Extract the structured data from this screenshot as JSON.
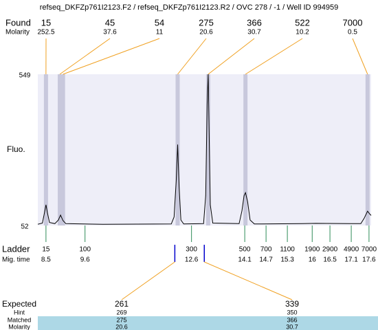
{
  "chart_data": {
    "type": "electropherogram",
    "title": "refseq_DKFZp761I2123.F2 / refseq_DKFZp761I2123.R2 / OVC 278 / -1 / Well ID 994959",
    "ylabel": "Fluo.",
    "ylim": [
      52,
      549
    ],
    "yticks": [
      52,
      549
    ],
    "xlim": [
      8.27,
      17.66
    ],
    "plot_background": "#eeeef8",
    "trace": {
      "color": "#000000",
      "x": [
        8.27,
        8.4,
        8.46,
        8.5,
        8.54,
        8.6,
        8.75,
        8.85,
        8.91,
        8.98,
        9.06,
        10.1,
        12.03,
        12.11,
        12.17,
        12.21,
        12.25,
        12.3,
        12.38,
        12.94,
        13.0,
        13.04,
        13.07,
        13.09,
        13.13,
        13.2,
        13.94,
        14.02,
        14.08,
        14.12,
        14.18,
        14.25,
        14.37,
        15.72,
        16.1,
        17.37,
        17.46,
        17.56,
        17.62,
        17.66
      ],
      "values": [
        56,
        60,
        95,
        120,
        95,
        62,
        58,
        70,
        86,
        68,
        58,
        56,
        57,
        80,
        200,
        318,
        180,
        70,
        57,
        58,
        150,
        450,
        549,
        400,
        120,
        60,
        58,
        100,
        150,
        160,
        130,
        70,
        57,
        58,
        59,
        58,
        75,
        99,
        90,
        85
      ]
    },
    "found": {
      "label": "Found",
      "sizes": [
        15,
        45,
        54,
        275,
        366,
        522,
        7000
      ],
      "times": [
        8.5,
        8.89,
        8.98,
        12.21,
        13.07,
        14.12,
        17.56
      ],
      "band_color": "#c8c8dc",
      "connector_color": "#f0a020",
      "molarity_label": "Molarity",
      "molarity": [
        252.5,
        37.6,
        11,
        20.6,
        30.7,
        10.2,
        0.5
      ]
    },
    "ladder": {
      "label": "Ladder",
      "color": "#2e8b57",
      "sizes": [
        15,
        100,
        300,
        500,
        700,
        1100,
        1900,
        2900,
        4900,
        7000
      ],
      "time_label": "Mig. time",
      "times": [
        8.5,
        9.6,
        12.6,
        14.1,
        14.7,
        15.3,
        16,
        16.5,
        17.1,
        17.6
      ]
    },
    "expected": {
      "label": "Expected",
      "values": [
        261,
        339
      ],
      "times": [
        12.13,
        12.96
      ],
      "color": "#0000cc",
      "hint_label": "Hint",
      "hint": [
        269,
        350
      ],
      "matched_label": "Matched",
      "matched": [
        275,
        366
      ],
      "molarity_label": "Molarity",
      "molarity": [
        20.6,
        30.7
      ],
      "highlight_color": "#add8e6"
    }
  }
}
